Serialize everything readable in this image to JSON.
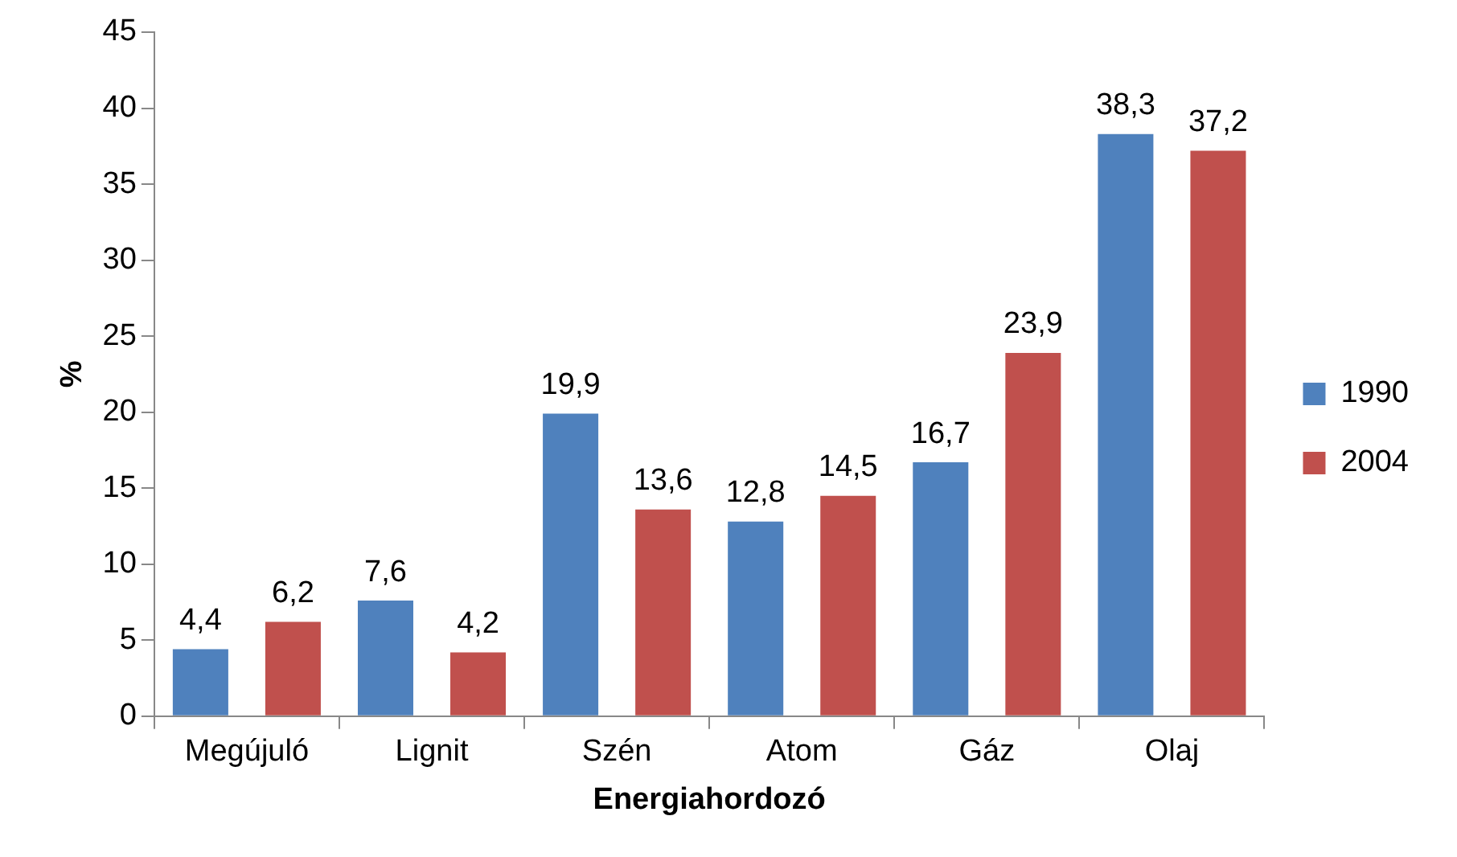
{
  "chart_data": {
    "type": "bar",
    "xlabel": "Energiahordozó",
    "ylabel": "%",
    "categories": [
      "Megújuló",
      "Lignit",
      "Szén",
      "Atom",
      "Gáz",
      "Olaj"
    ],
    "series": [
      {
        "name": "1990",
        "color": "#4f81bd",
        "values": [
          4.4,
          7.6,
          19.9,
          12.8,
          16.7,
          38.3
        ],
        "value_labels": [
          "4,4",
          "7,6",
          "19,9",
          "12,8",
          "16,7",
          "38,3"
        ]
      },
      {
        "name": "2004",
        "color": "#c0504d",
        "values": [
          6.2,
          4.2,
          13.6,
          14.5,
          23.9,
          37.2
        ],
        "value_labels": [
          "6,2",
          "4,2",
          "13,6",
          "14,5",
          "23,9",
          "37,2"
        ]
      }
    ],
    "ylim": [
      0,
      45
    ],
    "yticks": [
      0,
      5,
      10,
      15,
      20,
      25,
      30,
      35,
      40,
      45
    ],
    "grid": false,
    "legend": "right"
  }
}
